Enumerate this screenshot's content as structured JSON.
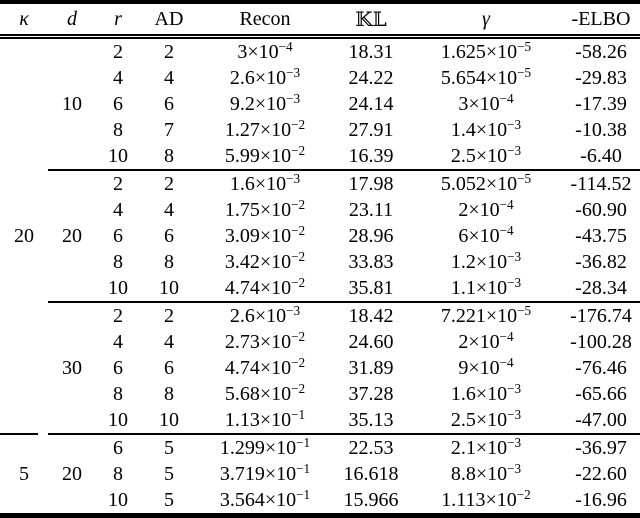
{
  "colors": {
    "text": "#000000",
    "background": "#ffffff",
    "rule": "#000000"
  },
  "table": {
    "columns": [
      {
        "key": "kappa",
        "label": "κ"
      },
      {
        "key": "d",
        "label": "d"
      },
      {
        "key": "r",
        "label": "r"
      },
      {
        "key": "ad",
        "label": "AD"
      },
      {
        "key": "recon",
        "label": "Recon"
      },
      {
        "key": "kl",
        "label": "𝕂𝕃"
      },
      {
        "key": "gamma",
        "label": "γ"
      },
      {
        "key": "elbo",
        "label": "-ELBO"
      }
    ],
    "groups": [
      {
        "kappa": "20",
        "subgroups": [
          {
            "d": "10",
            "rows": [
              [
                "2",
                "2",
                "3×10^−4",
                "18.31",
                "1.625×10^−5",
                "-58.26"
              ],
              [
                "4",
                "4",
                "2.6×10^−3",
                "24.22",
                "5.654×10^−5",
                "-29.83"
              ],
              [
                "6",
                "6",
                "9.2×10^−3",
                "24.14",
                "3×10^−4",
                "-17.39"
              ],
              [
                "8",
                "7",
                "1.27×10^−2",
                "27.91",
                "1.4×10^−3",
                "-10.38"
              ],
              [
                "10",
                "8",
                "5.99×10^−2",
                "16.39",
                "2.5×10^−3",
                "-6.40"
              ]
            ]
          },
          {
            "d": "20",
            "rows": [
              [
                "2",
                "2",
                "1.6×10^−3",
                "17.98",
                "5.052×10^−5",
                "-114.52"
              ],
              [
                "4",
                "4",
                "1.75×10^−2",
                "23.11",
                "2×10^−4",
                "-60.90"
              ],
              [
                "6",
                "6",
                "3.09×10^−2",
                "28.96",
                "6×10^−4",
                "-43.75"
              ],
              [
                "8",
                "8",
                "3.42×10^−2",
                "33.83",
                "1.2×10^−3",
                "-36.82"
              ],
              [
                "10",
                "10",
                "4.74×10^−2",
                "35.81",
                "1.1×10^−3",
                "-28.34"
              ]
            ]
          },
          {
            "d": "30",
            "rows": [
              [
                "2",
                "2",
                "2.6×10^−3",
                "18.42",
                "7.221×10^−5",
                "-176.74"
              ],
              [
                "4",
                "4",
                "2.73×10^−2",
                "24.60",
                "2×10^−4",
                "-100.28"
              ],
              [
                "6",
                "6",
                "4.74×10^−2",
                "31.89",
                "9×10^−4",
                "-76.46"
              ],
              [
                "8",
                "8",
                "5.68×10^−2",
                "37.28",
                "1.6×10^−3",
                "-65.66"
              ],
              [
                "10",
                "10",
                "1.13×10^−1",
                "35.13",
                "2.5×10^−3",
                "-47.00"
              ]
            ]
          }
        ]
      },
      {
        "kappa": "5",
        "subgroups": [
          {
            "d": "20",
            "rows": [
              [
                "6",
                "5",
                "1.299×10^−1",
                "22.53",
                "2.1×10^−3",
                "-36.97"
              ],
              [
                "8",
                "5",
                "3.719×10^−1",
                "16.618",
                "8.8×10^−3",
                "-22.60"
              ],
              [
                "10",
                "5",
                "3.564×10^−1",
                "15.966",
                "1.113×10^−2",
                "-16.96"
              ]
            ]
          }
        ]
      }
    ]
  }
}
